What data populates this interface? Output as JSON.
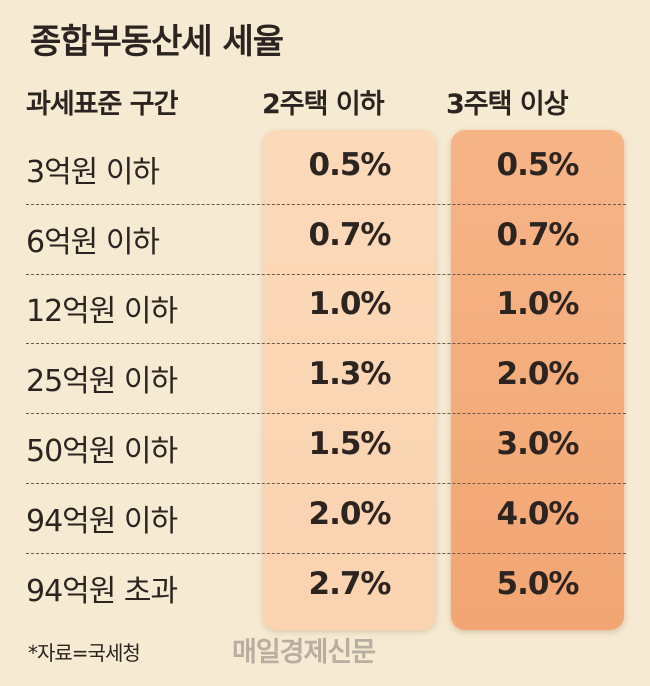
{
  "title": "종합부동산세 세율",
  "header": {
    "bracket": "과세표준 구간",
    "two_homes": "2주택 이하",
    "three_homes": "3주택 이상"
  },
  "rows": [
    {
      "bracket": "3억원 이하",
      "two": "0.5%",
      "three": "0.5%"
    },
    {
      "bracket": "6억원 이하",
      "two": "0.7%",
      "three": "0.7%"
    },
    {
      "bracket": "12억원 이하",
      "two": "1.0%",
      "three": "1.0%"
    },
    {
      "bracket": "25억원 이하",
      "two": "1.3%",
      "three": "2.0%"
    },
    {
      "bracket": "50억원 이하",
      "two": "1.5%",
      "three": "3.0%"
    },
    {
      "bracket": "94억원 이하",
      "two": "2.0%",
      "three": "4.0%"
    },
    {
      "bracket": "94억원 초과",
      "two": "2.7%",
      "three": "5.0%"
    }
  ],
  "footer": {
    "source": "*자료=국세청",
    "logo": "매일경제신문"
  },
  "colors": {
    "background": "#f6ead2",
    "two_column": "#fbd9b9",
    "three_column": "#f4ad7c",
    "text": "#2b2420",
    "logo": "#b8aea2"
  }
}
